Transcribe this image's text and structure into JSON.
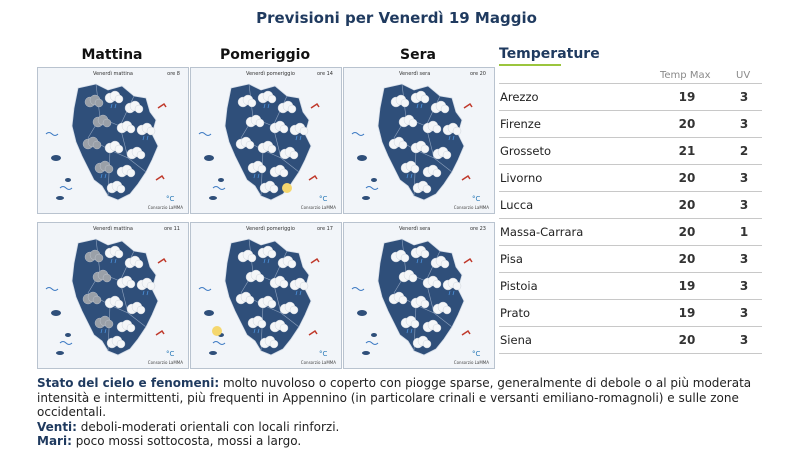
{
  "title": "Previsioni per Venerdì 19 Maggio",
  "columns": [
    "Mattina",
    "Pomeriggio",
    "Sera"
  ],
  "maps": [
    {
      "label": "Venerdì mattina",
      "time": "ore 8",
      "deg": "°C"
    },
    {
      "label": "Venerdì pomeriggio",
      "time": "ore 14",
      "deg": "°C"
    },
    {
      "label": "Venerdì sera",
      "time": "ore 20",
      "deg": "°C"
    },
    {
      "label": "Venerdì mattina",
      "time": "ore 11",
      "deg": "°C"
    },
    {
      "label": "Venerdì pomeriggio",
      "time": "ore 17",
      "deg": "°C"
    },
    {
      "label": "Venerdì sera",
      "time": "ore 23",
      "deg": "°C"
    }
  ],
  "credit": "Consorzio LaMMA",
  "temperature": {
    "title": "Temperature",
    "headers": {
      "tmax": "Temp Max",
      "uv": "UV"
    },
    "rows": [
      {
        "city": "Arezzo",
        "tmax": "19",
        "uv": "3"
      },
      {
        "city": "Firenze",
        "tmax": "20",
        "uv": "3"
      },
      {
        "city": "Grosseto",
        "tmax": "21",
        "uv": "2"
      },
      {
        "city": "Livorno",
        "tmax": "20",
        "uv": "3"
      },
      {
        "city": "Lucca",
        "tmax": "20",
        "uv": "3"
      },
      {
        "city": "Massa-Carrara",
        "tmax": "20",
        "uv": "1"
      },
      {
        "city": "Pisa",
        "tmax": "20",
        "uv": "3"
      },
      {
        "city": "Pistoia",
        "tmax": "19",
        "uv": "3"
      },
      {
        "city": "Prato",
        "tmax": "19",
        "uv": "3"
      },
      {
        "city": "Siena",
        "tmax": "20",
        "uv": "3"
      }
    ]
  },
  "description": {
    "sky_label": "Stato del cielo e fenomeni:",
    "sky_text": " molto nuvoloso o coperto con piogge sparse, generalmente di debole o al più moderata intensità e intermittenti, più frequenti in Appennino (in particolare crinali e versanti emiliano-romagnoli) e sulle zone occidentali.",
    "wind_label": "Venti:",
    "wind_text": " deboli-moderati orientali con locali rinforzi.",
    "sea_label": "Mari:",
    "sea_text": " poco mossi sottocosta, mossi a largo."
  }
}
